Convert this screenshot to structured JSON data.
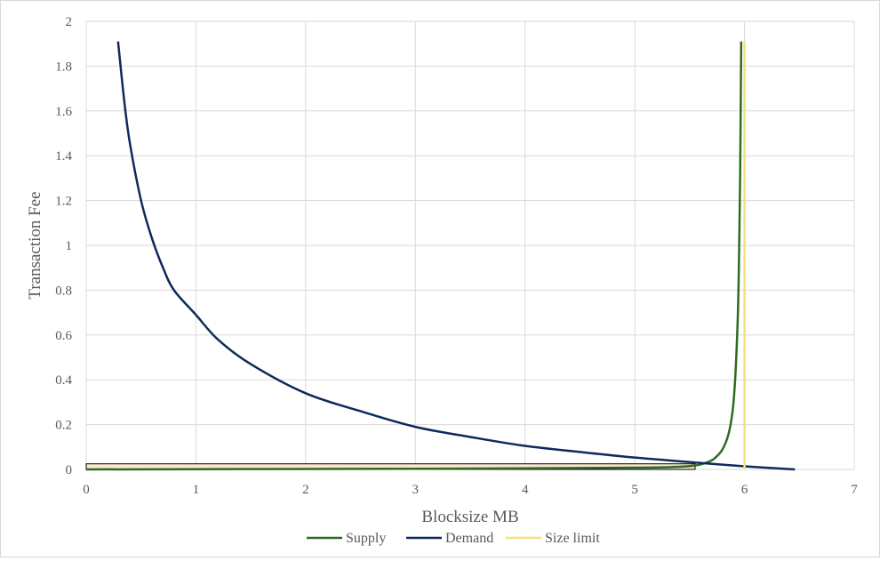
{
  "chart_data": {
    "type": "line",
    "title": "",
    "xlabel": "Blocksize MB",
    "ylabel": "Transaction Fee",
    "xlim": [
      0,
      7
    ],
    "ylim": [
      0,
      2
    ],
    "x_ticks": [
      "0",
      "1",
      "2",
      "3",
      "4",
      "5",
      "6",
      "7"
    ],
    "y_ticks": [
      "0",
      "0.2",
      "0.4",
      "0.6",
      "0.8",
      "1",
      "1.2",
      "1.4",
      "1.6",
      "1.8",
      "2"
    ],
    "grid": true,
    "legend_position": "bottom",
    "series": [
      {
        "name": "Supply",
        "color": "#2e6b22",
        "points": [
          [
            0,
            0
          ],
          [
            1,
            0.001
          ],
          [
            2,
            0.002
          ],
          [
            3,
            0.003
          ],
          [
            4,
            0.005
          ],
          [
            5,
            0.008
          ],
          [
            5.3,
            0.01
          ],
          [
            5.5,
            0.015
          ],
          [
            5.6,
            0.022
          ],
          [
            5.7,
            0.04
          ],
          [
            5.75,
            0.06
          ],
          [
            5.8,
            0.09
          ],
          [
            5.85,
            0.15
          ],
          [
            5.88,
            0.22
          ],
          [
            5.9,
            0.3
          ],
          [
            5.92,
            0.45
          ],
          [
            5.94,
            0.7
          ],
          [
            5.95,
            0.95
          ],
          [
            5.96,
            1.3
          ],
          [
            5.97,
            1.91
          ]
        ]
      },
      {
        "name": "Demand",
        "color": "#0e2a5c",
        "points": [
          [
            0.29,
            1.91
          ],
          [
            0.35,
            1.63
          ],
          [
            0.4,
            1.45
          ],
          [
            0.5,
            1.2
          ],
          [
            0.6,
            1.03
          ],
          [
            0.7,
            0.9
          ],
          [
            0.8,
            0.8
          ],
          [
            1.0,
            0.69
          ],
          [
            1.2,
            0.58
          ],
          [
            1.5,
            0.47
          ],
          [
            2.0,
            0.34
          ],
          [
            2.5,
            0.26
          ],
          [
            3.0,
            0.19
          ],
          [
            3.5,
            0.145
          ],
          [
            4.0,
            0.105
          ],
          [
            4.5,
            0.078
          ],
          [
            5.0,
            0.053
          ],
          [
            5.5,
            0.033
          ],
          [
            6.0,
            0.014
          ],
          [
            6.46,
            0.0
          ]
        ]
      },
      {
        "name": "Size limit",
        "color": "#f5e27a",
        "points": [
          [
            6.0,
            0
          ],
          [
            6.0,
            1.91
          ]
        ]
      }
    ],
    "annotations": [
      {
        "type": "highlight-band",
        "x": [
          0,
          5.55
        ],
        "y": [
          0,
          0.025
        ],
        "fill": "#fbe6cf",
        "stroke": "#000000"
      }
    ]
  }
}
